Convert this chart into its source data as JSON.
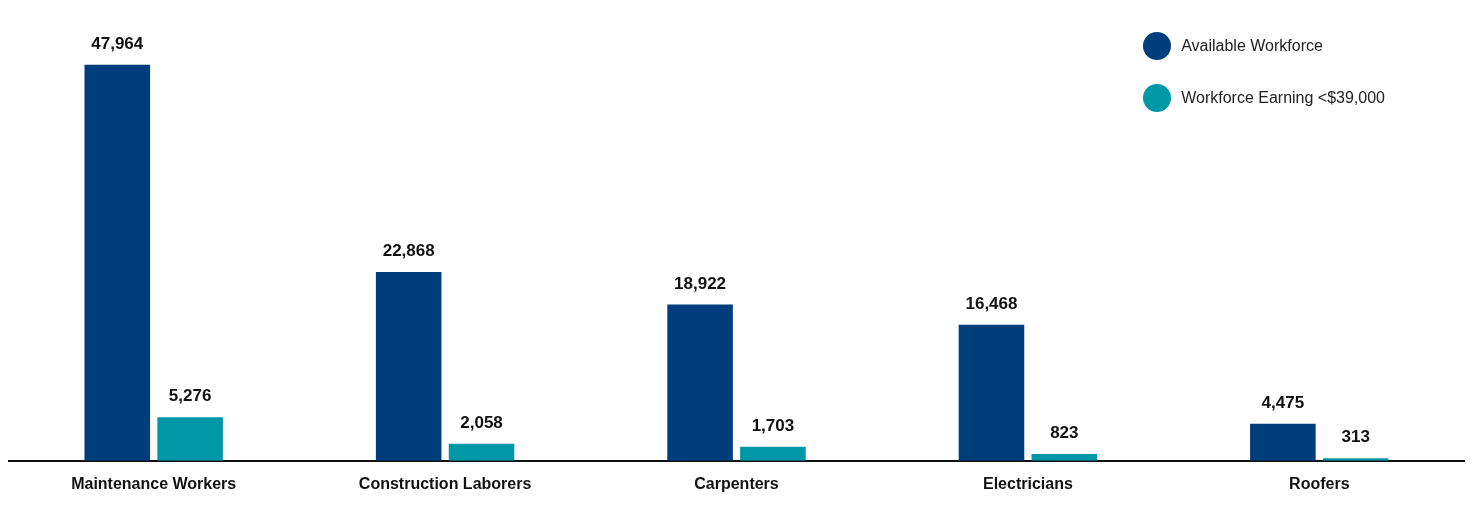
{
  "chart_data": {
    "type": "bar",
    "categories": [
      "Maintenance Workers",
      "Construction Laborers",
      "Carpenters",
      "Electricians",
      "Roofers"
    ],
    "series": [
      {
        "name": "Available Workforce",
        "color": "#003d7c",
        "values": [
          47964,
          22868,
          18922,
          16468,
          4475
        ],
        "value_labels": [
          "47,964",
          "22,868",
          "18,922",
          "16,468",
          "4,475"
        ]
      },
      {
        "name": "Workforce Earning <$39,000",
        "color": "#0097a7",
        "values": [
          5276,
          2058,
          1703,
          823,
          313
        ],
        "value_labels": [
          "5,276",
          "2,058",
          "1,703",
          "823",
          "313"
        ]
      }
    ],
    "legend": "top right",
    "grid": false,
    "tick_labels": "x"
  }
}
